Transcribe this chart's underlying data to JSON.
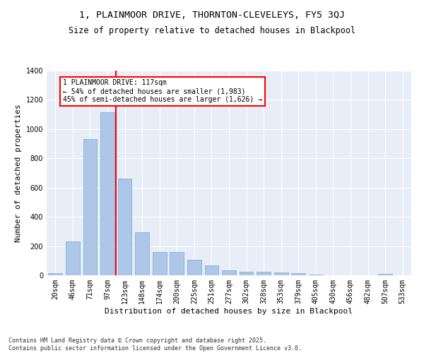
{
  "title1": "1, PLAINMOOR DRIVE, THORNTON-CLEVELEYS, FY5 3QJ",
  "title2": "Size of property relative to detached houses in Blackpool",
  "xlabel": "Distribution of detached houses by size in Blackpool",
  "ylabel": "Number of detached properties",
  "categories": [
    "20sqm",
    "46sqm",
    "71sqm",
    "97sqm",
    "123sqm",
    "148sqm",
    "174sqm",
    "200sqm",
    "225sqm",
    "251sqm",
    "277sqm",
    "302sqm",
    "328sqm",
    "353sqm",
    "379sqm",
    "405sqm",
    "430sqm",
    "456sqm",
    "482sqm",
    "507sqm",
    "533sqm"
  ],
  "values": [
    15,
    230,
    930,
    1115,
    660,
    295,
    160,
    160,
    105,
    70,
    35,
    25,
    22,
    20,
    15,
    5,
    0,
    0,
    0,
    8,
    0
  ],
  "bar_color": "#aec6e8",
  "bar_edge_color": "#6aaad4",
  "vline_color": "red",
  "vline_pos": 3.5,
  "annotation_text": "1 PLAINMOOR DRIVE: 117sqm\n← 54% of detached houses are smaller (1,983)\n45% of semi-detached houses are larger (1,626) →",
  "annotation_box_color": "white",
  "annotation_box_edge_color": "red",
  "footer": "Contains HM Land Registry data © Crown copyright and database right 2025.\nContains public sector information licensed under the Open Government Licence v3.0.",
  "ylim": [
    0,
    1400
  ],
  "yticks": [
    0,
    200,
    400,
    600,
    800,
    1000,
    1200,
    1400
  ],
  "bg_color": "#e8eef8",
  "title_fontsize": 9.5,
  "subtitle_fontsize": 8.5,
  "ylabel_fontsize": 8,
  "xlabel_fontsize": 8,
  "tick_fontsize": 7,
  "footer_fontsize": 6
}
